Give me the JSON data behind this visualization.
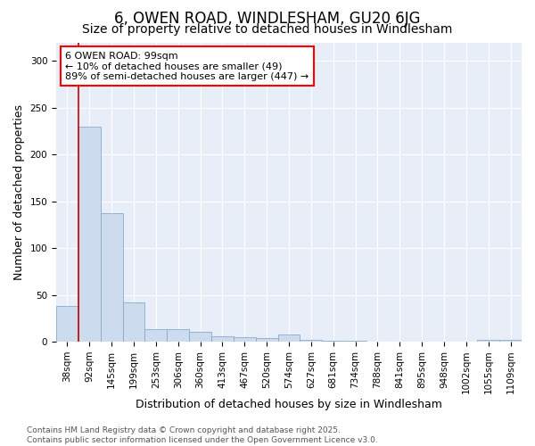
{
  "title": "6, OWEN ROAD, WINDLESHAM, GU20 6JG",
  "subtitle": "Size of property relative to detached houses in Windlesham",
  "xlabel": "Distribution of detached houses by size in Windlesham",
  "ylabel": "Number of detached properties",
  "categories": [
    "38sqm",
    "92sqm",
    "145sqm",
    "199sqm",
    "253sqm",
    "306sqm",
    "360sqm",
    "413sqm",
    "467sqm",
    "520sqm",
    "574sqm",
    "627sqm",
    "681sqm",
    "734sqm",
    "788sqm",
    "841sqm",
    "895sqm",
    "948sqm",
    "1002sqm",
    "1055sqm",
    "1109sqm"
  ],
  "values": [
    38,
    230,
    137,
    42,
    13,
    13,
    11,
    6,
    5,
    4,
    8,
    2,
    1,
    1,
    0,
    0,
    0,
    0,
    0,
    2,
    2
  ],
  "bar_color": "#ccdcee",
  "bar_edge_color": "#88aacc",
  "vline_color": "#cc0000",
  "annotation_text": "6 OWEN ROAD: 99sqm\n← 10% of detached houses are smaller (49)\n89% of semi-detached houses are larger (447) →",
  "annotation_box_facecolor": "white",
  "annotation_box_edgecolor": "red",
  "ylim": [
    0,
    320
  ],
  "yticks": [
    0,
    50,
    100,
    150,
    200,
    250,
    300
  ],
  "footnote": "Contains HM Land Registry data © Crown copyright and database right 2025.\nContains public sector information licensed under the Open Government Licence v3.0.",
  "bg_color": "#ffffff",
  "plot_bg_color": "#e8eef8",
  "grid_color": "#ffffff",
  "title_fontsize": 12,
  "subtitle_fontsize": 10,
  "xlabel_fontsize": 9,
  "ylabel_fontsize": 9,
  "tick_fontsize": 7.5,
  "annotation_fontsize": 8,
  "footnote_fontsize": 6.5
}
